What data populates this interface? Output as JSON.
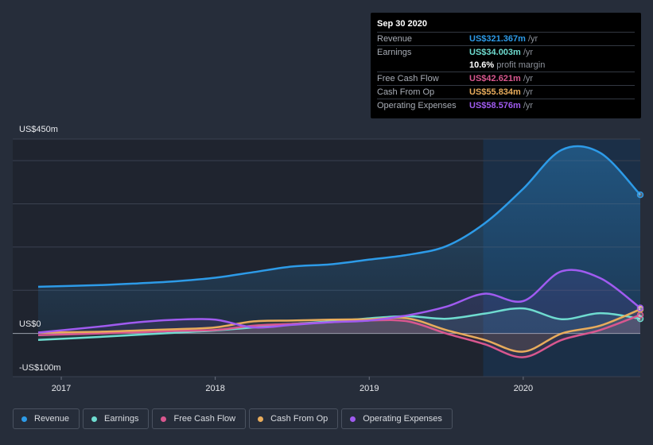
{
  "tooltip": {
    "date": "Sep 30 2020",
    "rows": [
      {
        "label": "Revenue",
        "value": "US$321.367m",
        "unit": "/yr",
        "color": "#2d9be8"
      },
      {
        "label": "Earnings",
        "value": "US$34.003m",
        "unit": "/yr",
        "color": "#6fdcd0"
      },
      {
        "label": "",
        "value": "10.6%",
        "unit": "profit margin",
        "color": "#ffffff"
      },
      {
        "label": "Free Cash Flow",
        "value": "US$42.621m",
        "unit": "/yr",
        "color": "#d9578f"
      },
      {
        "label": "Cash From Op",
        "value": "US$55.834m",
        "unit": "/yr",
        "color": "#e8ac5c"
      },
      {
        "label": "Operating Expenses",
        "value": "US$58.576m",
        "unit": "/yr",
        "color": "#a05bf0"
      }
    ]
  },
  "legend": [
    {
      "label": "Revenue",
      "color": "#2d9be8"
    },
    {
      "label": "Earnings",
      "color": "#6fdcd0"
    },
    {
      "label": "Free Cash Flow",
      "color": "#d9578f"
    },
    {
      "label": "Cash From Op",
      "color": "#e8ac5c"
    },
    {
      "label": "Operating Expenses",
      "color": "#a05bf0"
    }
  ],
  "chart_data": {
    "type": "line",
    "title": "",
    "ylabel": "",
    "y_top_label": "US$450m",
    "y_zero_label": "US$0",
    "y_bottom_label": "-US$100m",
    "ylim": [
      -100,
      450
    ],
    "xlim": [
      2016.85,
      2020.76
    ],
    "x_ticks": [
      2017,
      2018,
      2019,
      2020
    ],
    "x_tick_labels": [
      "2017",
      "2018",
      "2019",
      "2020"
    ],
    "highlight_start": 2019.74,
    "series": [
      {
        "name": "Revenue",
        "color": "#2d9be8",
        "x": [
          2016.85,
          2017.25,
          2017.5,
          2017.75,
          2018.0,
          2018.25,
          2018.5,
          2018.75,
          2019.0,
          2019.25,
          2019.5,
          2019.75,
          2020.0,
          2020.25,
          2020.5,
          2020.76
        ],
        "y": [
          108,
          112,
          116,
          121,
          129,
          142,
          155,
          160,
          171,
          182,
          202,
          255,
          335,
          425,
          418,
          321
        ]
      },
      {
        "name": "Earnings",
        "color": "#6fdcd0",
        "x": [
          2016.85,
          2017.25,
          2017.5,
          2017.75,
          2018.0,
          2018.25,
          2018.5,
          2018.75,
          2019.0,
          2019.25,
          2019.5,
          2019.75,
          2020.0,
          2020.25,
          2020.5,
          2020.76
        ],
        "y": [
          -15,
          -8,
          -3,
          2,
          7,
          14,
          22,
          28,
          35,
          40,
          34,
          46,
          58,
          33,
          47,
          34
        ]
      },
      {
        "name": "Free Cash Flow",
        "color": "#d9578f",
        "x": [
          2016.85,
          2017.25,
          2017.5,
          2017.75,
          2018.0,
          2018.25,
          2018.5,
          2018.75,
          2019.0,
          2019.25,
          2019.5,
          2019.75,
          2020.0,
          2020.25,
          2020.5,
          2020.76
        ],
        "y": [
          -4,
          0,
          3,
          6,
          8,
          18,
          22,
          26,
          30,
          28,
          0,
          -25,
          -55,
          -15,
          8,
          43
        ]
      },
      {
        "name": "Cash From Op",
        "color": "#e8ac5c",
        "x": [
          2016.85,
          2017.25,
          2017.5,
          2017.75,
          2018.0,
          2018.25,
          2018.5,
          2018.75,
          2019.0,
          2019.25,
          2019.5,
          2019.75,
          2020.0,
          2020.25,
          2020.5,
          2020.76
        ],
        "y": [
          2,
          4,
          7,
          10,
          14,
          28,
          30,
          32,
          33,
          35,
          8,
          -15,
          -42,
          0,
          18,
          56
        ]
      },
      {
        "name": "Operating Expenses",
        "color": "#a05bf0",
        "x": [
          2016.85,
          2017.25,
          2017.5,
          2017.75,
          2018.0,
          2018.25,
          2018.5,
          2018.75,
          2019.0,
          2019.25,
          2019.5,
          2019.75,
          2020.0,
          2020.25,
          2020.5,
          2020.76
        ],
        "y": [
          2,
          16,
          26,
          32,
          32,
          14,
          20,
          26,
          30,
          42,
          62,
          92,
          75,
          144,
          128,
          59
        ]
      }
    ]
  }
}
